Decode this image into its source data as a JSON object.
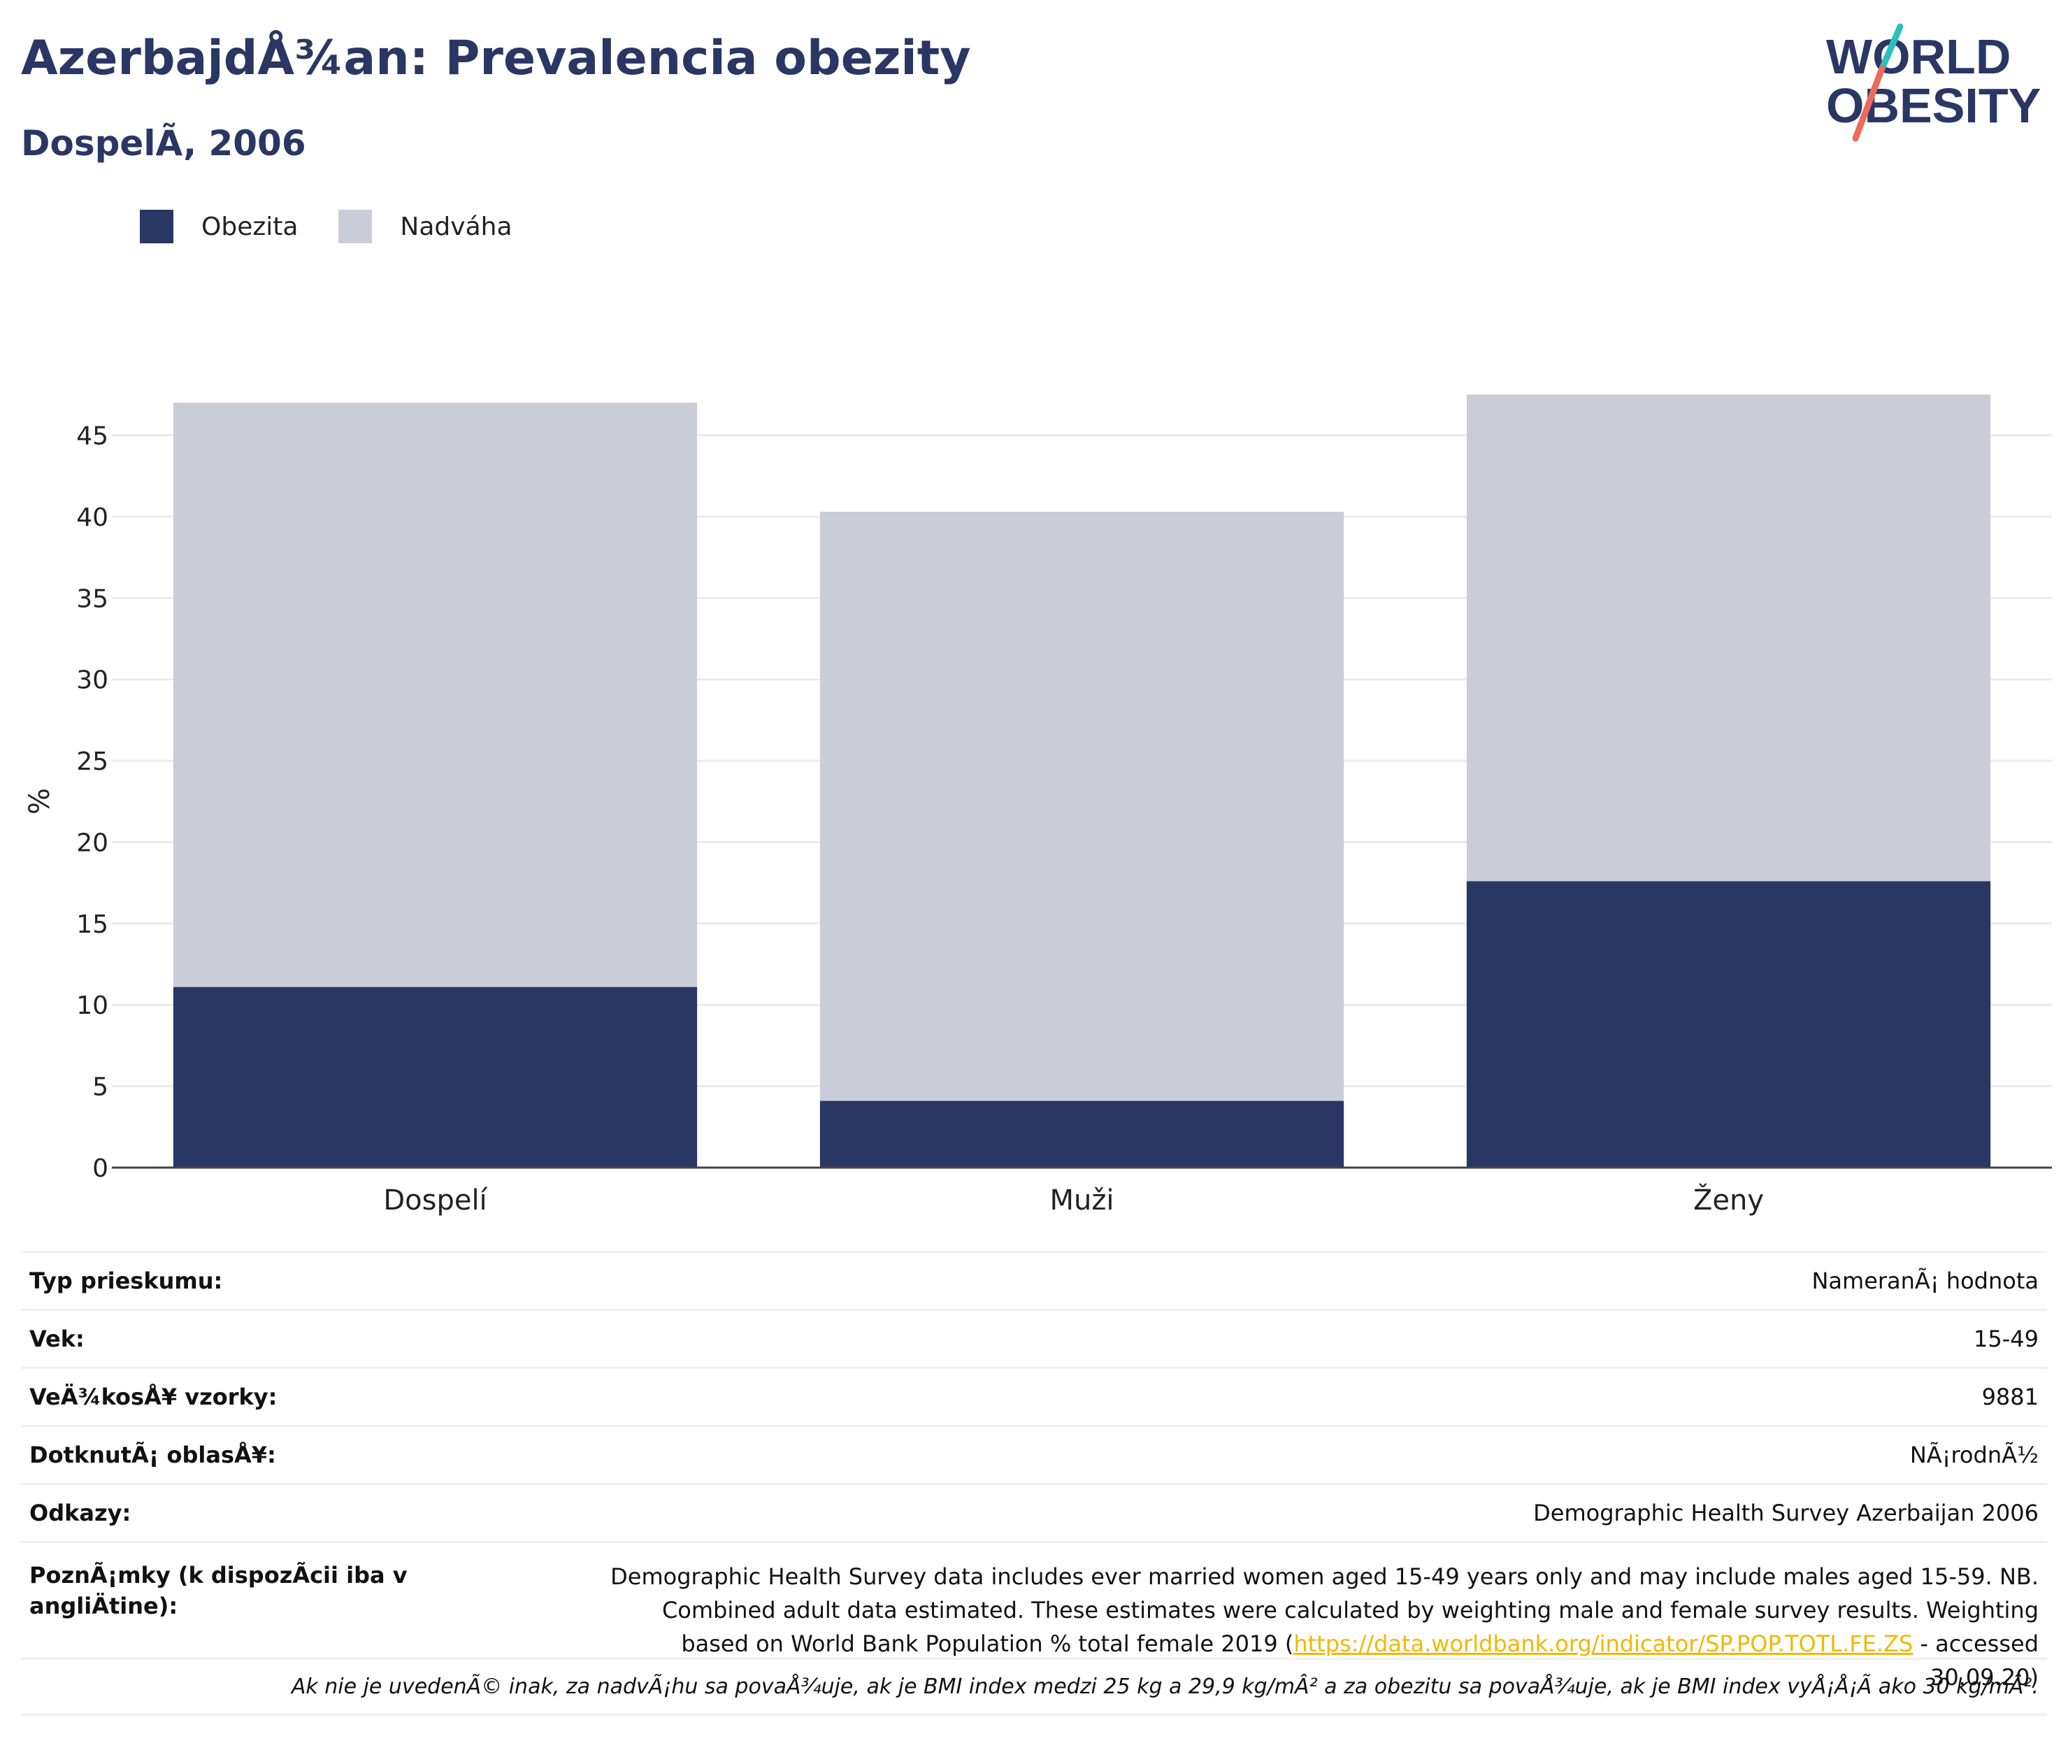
{
  "header": {
    "title": "AzerbajdÅ¾an: Prevalencia obezity",
    "subtitle": "DospelÃ, 2006"
  },
  "logo": {
    "line1": "WORLD",
    "line2": "OBESITY"
  },
  "colors": {
    "obesity": "#2a3663",
    "overweight": "#cacdd8",
    "accent_teal": "#2bbfbf",
    "accent_coral": "#ec6b5c",
    "link": "#f2b705"
  },
  "chart_data": {
    "type": "bar",
    "stacked": true,
    "categories": [
      "Dospelí",
      "Muži",
      "Ženy"
    ],
    "series": [
      {
        "name": "Obezita",
        "values": [
          11.1,
          4.1,
          17.6
        ]
      },
      {
        "name": "Nadváha",
        "values": [
          35.9,
          36.2,
          29.9
        ]
      }
    ],
    "ylabel": "%",
    "ylim": [
      0,
      47.6
    ],
    "yticks": [
      0,
      5,
      10,
      15,
      20,
      25,
      30,
      35,
      40,
      45
    ],
    "grid": true,
    "legend_position": "top-left"
  },
  "info": {
    "rows": [
      {
        "label": "Typ prieskumu:",
        "value": "NameranÃ¡ hodnota"
      },
      {
        "label": "Vek:",
        "value": "15-49"
      },
      {
        "label": "VeÄ¾kosÅ¥ vzorky:",
        "value": "9881"
      },
      {
        "label": "DotknutÃ¡ oblasÅ¥:",
        "value": "NÃ¡rodnÃ½"
      },
      {
        "label": "Odkazy:",
        "value": "Demographic Health Survey Azerbaijan 2006"
      }
    ],
    "notes": {
      "label": "PoznÃ¡mky (k dispozÃcii iba v angliÄtine):",
      "text_before": "Demographic Health Survey data includes ever married women aged 15-49 years only and may include males aged 15-59. NB. Combined adult data estimated. These estimates were calculated by weighting male and female survey results. Weighting based on World Bank Population % total female 2019 (",
      "link": "https://data.worldbank.org/indicator/SP.POP.TOTL.FE.ZS",
      "text_after": " - accessed 30.09.20)"
    },
    "footnote": "Ak nie je uvedenÃ© inak, za nadvÃ¡hu sa povaÅ¾uje, ak je BMI index medzi 25 kg a 29,9 kg/mÂ² a za obezitu sa povaÅ¾uje, ak je BMI index vyÅ¡Å¡Ã ako 30 kg/mÂ²."
  }
}
